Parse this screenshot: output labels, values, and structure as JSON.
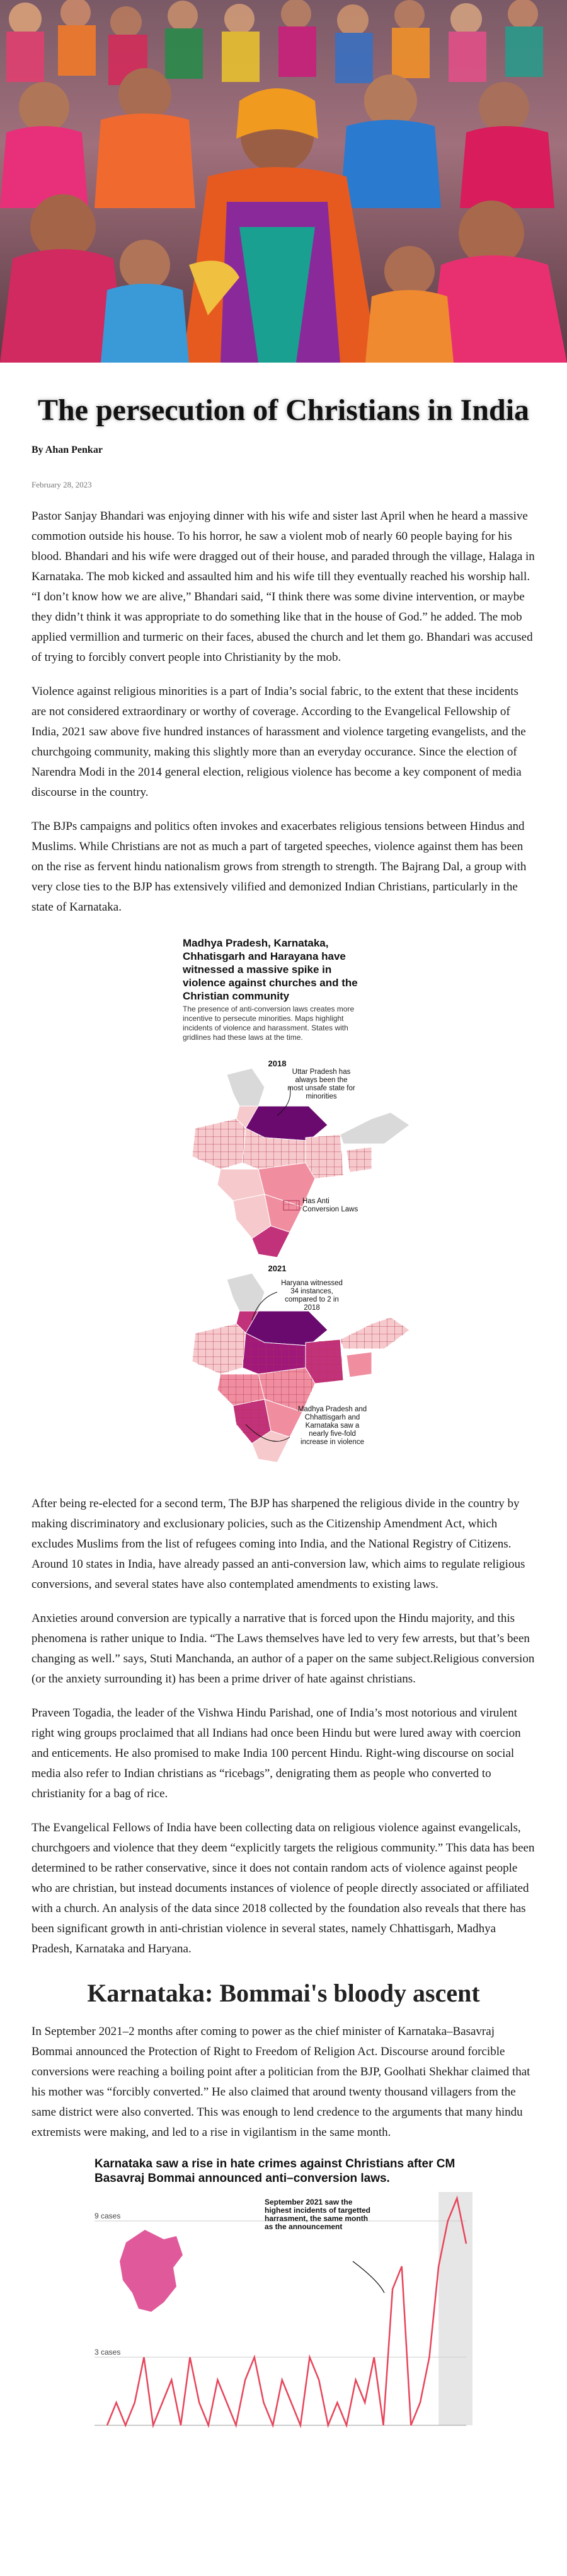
{
  "hero": {
    "image_alt_name": "crowd-praying-photo"
  },
  "article": {
    "title": "The persecution of Christians in India",
    "byline": "By Ahan Penkar",
    "date": "February 28, 2023",
    "paragraphs": [
      "Pastor Sanjay Bhandari was enjoying dinner with his wife and sister last April when he heard a massive commotion outside his house. To his horror, he saw a violent mob of nearly 60 people baying for his blood. Bhandari and his wife were dragged out of their house, and paraded through the village, Halaga in Karnataka. The mob kicked and assaulted him and his wife till they eventually reached his worship hall. “I don’t know how we are alive,” Bhandari said, “I think there was some divine intervention, or maybe they didn’t think it was appropriate to do something like that in the house of God.” he added. The mob applied vermillion and turmeric on their faces, abused the church and let them go. Bhandari was accused of trying to forcibly convert people into Christianity by the mob.",
      "Violence against religious minorities is a part of India’s social fabric, to the extent that these incidents are not considered extraordinary or worthy of coverage. According to the Evangelical Fellowship of India, 2021 saw above five hundred instances of harassment and violence targeting evangelists, and the churchgoing community, making this slightly more than an everyday occurance. Since the election of Narendra Modi in the 2014 general election, religious violence has become a key component of media discourse in the country.",
      "The BJPs campaigns and politics often invokes and exacerbates religious tensions between Hindus and Muslims. While Christians are not as much a part of targeted speeches, violence against them has been on the rise as fervent hindu nationalism grows from strength to strength. The Bajrang Dal, a group with very close ties to the BJP has extensively vilified and demonized Indian Christians, particularly in the state of Karnataka."
    ],
    "paragraphs2": [
      "After being re-elected for a second term, The BJP has sharpened the religious divide in the country by making discriminatory and exclusionary policies, such as the Citizenship Amendment Act, which excludes Muslims from the list of refugees coming into India, and the National Registry of Citizens. Around 10 states in India, have already passed an anti-conversion law, which aims to regulate religious conversions, and several states have also contemplated amendments to existing laws.",
      "Anxieties around conversion are typically a narrative that is forced upon the Hindu majority, and this phenomena is rather unique to India. “The Laws themselves have led to very few arrests, but that’s been changing as well.” says, Stuti Manchanda, an author of a paper on the same subject.Religious conversion (or the anxiety surrounding it) has been a prime driver of hate against christians.",
      "Praveen Togadia, the leader of the Vishwa Hindu Parishad, one of India’s most notorious and virulent right wing groups proclaimed that all Indians had once been Hindu but were lured away with coercion and enticements. He also promised to make India 100 percent Hindu. Right-wing discourse on social media also refer to Indian christians as “ricebags”, denigrating them as people who converted to christianity for a bag of rice.",
      "The Evangelical Fellows of India have been collecting data on religious violence against evangelicals, churchgoers and violence that they deem “explicitly targets the religious community.” This data has been determined to be rather conservative, since it does not contain random acts of violence against people who are christian, but instead documents instances of violence of people directly associated or affiliated with a church. An analysis of the data since 2018 collected by the foundation also reveals that there has been significant growth in anti-christian violence in several states, namely Chhattisgarh, Madhya Pradesh, Karnataka and Haryana."
    ],
    "section_heading": "Karnataka: Bommai's bloody ascent",
    "paragraphs3": [
      "In September 2021–2 months after coming to power as the chief minister of Karnataka–Basavraj Bommai announced the Protection of Right to Freedom of Religion Act. Discourse around forcible conversions were reaching a boiling point after a politician from the BJP, Goolhati Shekhar claimed that his mother was “forcibly converted.” He also claimed that around twenty thousand villagers from the same district were also converted. This was enough to lend credence to the arguments that many hindu extremists were making, and led to a rise in vigilantism in the same month."
    ]
  },
  "map_graphic": {
    "title": "Madhya Pradesh, Karnataka, Chhatisgarh and Harayana have witnessed a massive spike in violence against churches and the Christian community",
    "subtitle": "The presence of anti-conversion laws creates more incentive to persecute minorities. Maps highlight incidents of violence and harassment. States with gridlines had these laws at the time.",
    "year_2018": "2018",
    "year_2021": "2021",
    "ann_up": "Uttar Pradesh has always been the most unsafe state for minorities",
    "legend_law": "Has Anti Conversion Laws",
    "ann_haryana": "Haryana witnessed 34 instances, compared to 2 in 2018",
    "ann_mp": "Madhya Pradesh and Chhattisgarh and Karnataka saw a nearly five-fold increase in violence",
    "colors": {
      "light": "#f6c9cc",
      "mid": "#f08ea0",
      "dark": "#c2327a",
      "darkest": "#6a0a6e",
      "grey": "#d9d9d9"
    }
  },
  "chart_data": {
    "type": "line",
    "title": "Karnataka saw a rise in hate crimes against Christians after CM Basavraj Bommai announced anti–conversion laws.",
    "y_tick_labels": [
      "9 cases",
      "3 cases"
    ],
    "ylim": [
      0,
      10
    ],
    "annotation": "September 2021 saw the highest incidents of targetted harrasment, the same month as the announcement",
    "series": [
      {
        "values": [
          0,
          1,
          0,
          1,
          3,
          0,
          1,
          2,
          0,
          3,
          1,
          0,
          2,
          1,
          0,
          2,
          3,
          1,
          0,
          2,
          1,
          0,
          3,
          2,
          0,
          1,
          0,
          2,
          1,
          3,
          0,
          6,
          7,
          0,
          1,
          3,
          7,
          9,
          10,
          8
        ]
      }
    ],
    "line_color": "#e8445a",
    "state_color": "#e05a9b"
  }
}
